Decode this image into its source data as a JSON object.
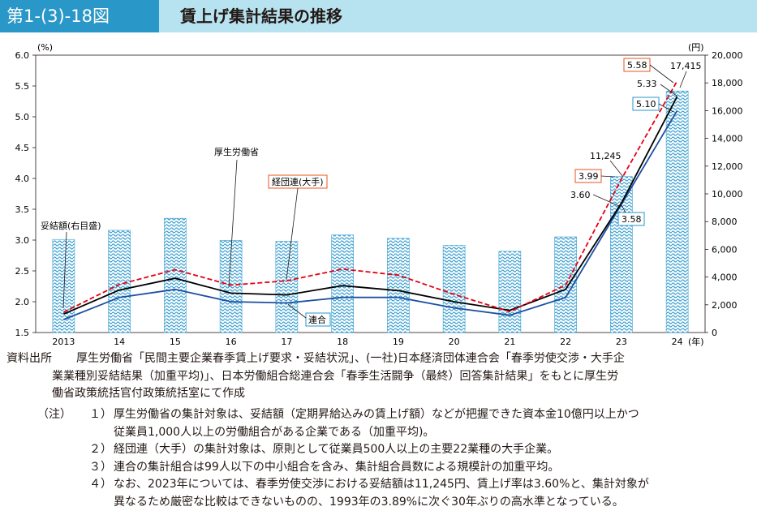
{
  "figure": {
    "number": "第1-(3)-18図",
    "title": "賃上げ集計結果の推移"
  },
  "chart_data": {
    "type": "bar+line",
    "categories": [
      "2013",
      "14",
      "15",
      "16",
      "17",
      "18",
      "19",
      "20",
      "21",
      "22",
      "23",
      "24"
    ],
    "x_unit": "(年)",
    "y_left": {
      "unit": "(%)",
      "range": [
        1.5,
        6.0
      ],
      "ticks": [
        "1.5",
        "2.0",
        "2.5",
        "3.0",
        "3.5",
        "4.0",
        "4.5",
        "5.0",
        "5.5",
        "6.0"
      ]
    },
    "y_right": {
      "unit": "(円)",
      "range": [
        0,
        20000
      ],
      "ticks": [
        "0",
        "2,000",
        "4,000",
        "6,000",
        "8,000",
        "10,000",
        "12,000",
        "14,000",
        "16,000",
        "18,000",
        "20,000"
      ]
    },
    "bars": {
      "name": "妥結額(右目盛)",
      "axis": "right",
      "values": [
        6711,
        7370,
        8235,
        6639,
        6570,
        7033,
        6790,
        6286,
        5854,
        6898,
        11245,
        17415
      ]
    },
    "series": [
      {
        "name": "厚生労働省",
        "axis": "left",
        "color": "#000000",
        "style": "solid",
        "values": [
          1.8,
          2.19,
          2.38,
          2.14,
          2.11,
          2.26,
          2.18,
          2.0,
          1.86,
          2.2,
          3.6,
          5.33
        ]
      },
      {
        "name": "経団連(大手)",
        "axis": "left",
        "color": "#e60012",
        "style": "dashed",
        "values": [
          1.83,
          2.28,
          2.52,
          2.27,
          2.34,
          2.53,
          2.43,
          2.12,
          1.84,
          2.27,
          3.99,
          5.58
        ]
      },
      {
        "name": "連合",
        "axis": "left",
        "color": "#1d50a2",
        "style": "solid",
        "values": [
          1.71,
          2.07,
          2.2,
          2.0,
          1.98,
          2.07,
          2.07,
          1.9,
          1.78,
          2.07,
          3.58,
          5.1
        ]
      }
    ],
    "data_labels": {
      "kosei_2023": "3.60",
      "keidanren_2023": "3.99",
      "rengo_2023": "3.58",
      "bar_2023": "11,245",
      "kosei_2024": "5.33",
      "keidanren_2024": "5.58",
      "rengo_2024": "5.10",
      "bar_2024": "17,415"
    }
  },
  "notes": {
    "source_label": "資料出所",
    "source_lines": [
      "厚生労働省「民間主要企業春季賃上げ要求・妥結状況」、(一社)日本経済団体連合会「春季労使交渉・大手企",
      "業業種別妥結結果（加重平均)」、日本労働組合総連合会「春季生活闘争（最終）回答集計結果」をもとに厚生労",
      "働省政策統括官付政策統括室にて作成"
    ],
    "note_label": "（注）",
    "items": [
      {
        "num": "１）",
        "lines": [
          "厚生労働省の集計対象は、妥結額（定期昇給込みの賃上げ額）などが把握できた資本金10億円以上かつ",
          "従業員1,000人以上の労働組合がある企業である（加重平均)。"
        ]
      },
      {
        "num": "２）",
        "lines": [
          "経団連（大手）の集計対象は、原則として従業員500人以上の主要22業種の大手企業。"
        ]
      },
      {
        "num": "３）",
        "lines": [
          "連合の集計組合は99人以下の中小組合を含み、集計組合員数による規模計の加重平均。"
        ]
      },
      {
        "num": "４）",
        "lines": [
          "なお、2023年については、春季労使交渉における妥結額は11,245円、賃上げ率は3.60%と、集計対象が",
          "異なるため厳密な比較はできないものの、1993年の3.89%に次ぐ30年ぶりの高水準となっている。"
        ]
      }
    ]
  },
  "colors": {
    "header_dark": "#2a97c9",
    "header_light": "#b7e3f0",
    "bar_blue": "#3a9fd0",
    "kosei": "#000000",
    "keidanren": "#e60012",
    "rengo": "#1d50a2",
    "box_red": "#e9541e",
    "box_blue": "#2a97c9"
  }
}
